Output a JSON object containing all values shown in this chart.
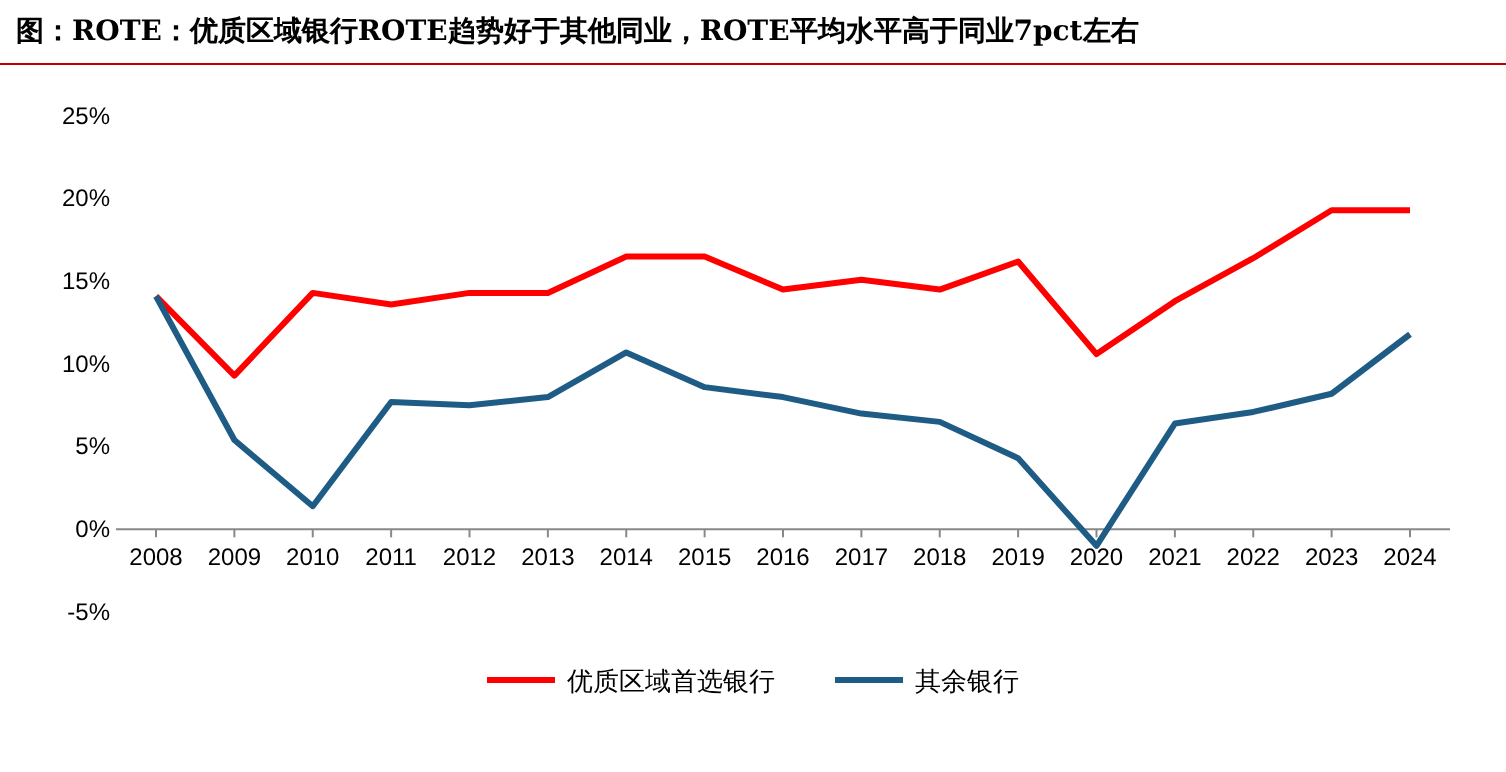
{
  "chart_data": {
    "type": "line",
    "title": "图：ROTE：优质区域银行ROTE趋势好于其他同业，ROTE平均水平高于同业7pct左右",
    "categories": [
      "2008",
      "2009",
      "2010",
      "2011",
      "2012",
      "2013",
      "2014",
      "2015",
      "2016",
      "2017",
      "2018",
      "2019",
      "2020",
      "2021",
      "2022",
      "2023",
      "2024"
    ],
    "series": [
      {
        "name": "优质区域首选银行",
        "color": "#ff0000",
        "values": [
          14.1,
          9.3,
          14.3,
          13.6,
          14.3,
          14.3,
          16.5,
          16.5,
          14.5,
          15.1,
          14.5,
          16.2,
          10.6,
          13.8,
          16.4,
          19.3,
          19.3
        ]
      },
      {
        "name": "其余银行",
        "color": "#1f5c85",
        "values": [
          14.1,
          5.4,
          1.4,
          7.7,
          7.5,
          8.0,
          10.7,
          8.6,
          8.0,
          7.0,
          6.5,
          4.3,
          -1.0,
          6.4,
          7.1,
          8.2,
          11.8
        ]
      }
    ],
    "ylim": [
      -5,
      25
    ],
    "yticks": [
      {
        "value": -5,
        "label": "-5%"
      },
      {
        "value": 0,
        "label": "0%"
      },
      {
        "value": 5,
        "label": "5%"
      },
      {
        "value": 10,
        "label": "10%"
      },
      {
        "value": 15,
        "label": "15%"
      },
      {
        "value": 20,
        "label": "20%"
      },
      {
        "value": 25,
        "label": "25%"
      }
    ],
    "grid": false,
    "legend": "bottom",
    "marker": "none",
    "line_style": "solid"
  }
}
